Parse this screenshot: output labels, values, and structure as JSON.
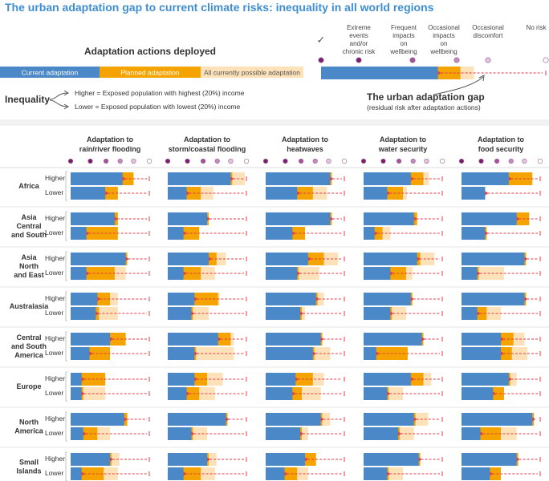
{
  "title": "The urban adaptation gap to current climate risks: inequality in all world regions",
  "legend": {
    "heading": "Adaptation actions deployed",
    "current": "Current adaptation",
    "planned": "Planned adaptation",
    "possible": "All currently possible adaptation",
    "inequality_label": "Inequality",
    "higher_desc": "Higher = Exposed population with highest (20%) income",
    "lower_desc": "Lower = Exposed population with lowest (20%) income",
    "check_mark": "✓",
    "risk_levels": [
      [
        "Extreme",
        "events",
        "and/or",
        "chronic risk"
      ],
      [
        "Frequent",
        "impacts",
        "on",
        "wellbeing"
      ],
      [
        "Occasional",
        "impacts",
        "on",
        "wellbeing"
      ],
      [
        "Occasional",
        "discomfort"
      ],
      [
        "No risk"
      ]
    ],
    "gap_title": "The urban adaptation gap",
    "gap_sub": "(residual risk after adaptation actions)",
    "example": {
      "current": 0.52,
      "planned": 0.62,
      "possible": 0.68
    }
  },
  "colors": {
    "current": "#4a88c7",
    "planned": "#f5a300",
    "possible": "#fde1b9",
    "gap": "#e63946",
    "title": "#3f8ed0",
    "risk_dots": [
      "#7a1f6e",
      "#a05396",
      "#c38bbb",
      "#e2c4de",
      "#ffffff"
    ]
  },
  "chart_data": {
    "type": "bar",
    "scale_note": "values are fraction of risk reduced (0 = extreme risk, 1 = no risk)",
    "hazards": [
      "Adaptation to rain/river flooding",
      "Adaptation to storm/coastal flooding",
      "Adaptation to heatwaves",
      "Adaptation to water security",
      "Adaptation to food security"
    ],
    "row_labels": [
      "Higher",
      "Lower"
    ],
    "regions": [
      {
        "name": "Africa",
        "values": [
          [
            [
              0.66,
              0.8,
              0.8
            ],
            [
              0.44,
              0.6,
              0.6
            ]
          ],
          [
            [
              0.8,
              0.82,
              0.98
            ],
            [
              0.24,
              0.42,
              0.58
            ]
          ],
          [
            [
              0.82,
              0.84,
              0.84
            ],
            [
              0.4,
              0.6,
              0.78
            ]
          ],
          [
            [
              0.6,
              0.76,
              0.83
            ],
            [
              0.3,
              0.5,
              0.55
            ]
          ],
          [
            [
              0.6,
              0.9,
              0.9
            ],
            [
              0.3,
              0.3,
              0.3
            ]
          ]
        ]
      },
      {
        "name": "Asia Central and South",
        "values": [
          [
            [
              0.56,
              0.6,
              0.6
            ],
            [
              0.2,
              0.6,
              0.6
            ]
          ],
          [
            [
              0.5,
              0.52,
              0.52
            ],
            [
              0.2,
              0.4,
              0.4
            ]
          ],
          [
            [
              0.82,
              0.84,
              0.84
            ],
            [
              0.34,
              0.5,
              0.5
            ]
          ],
          [
            [
              0.64,
              0.68,
              0.68
            ],
            [
              0.14,
              0.24,
              0.34
            ]
          ],
          [
            [
              0.7,
              0.86,
              0.86
            ],
            [
              0.3,
              0.32,
              0.32
            ]
          ]
        ]
      },
      {
        "name": "Asia North and East",
        "values": [
          [
            [
              0.7,
              0.72,
              0.72
            ],
            [
              0.2,
              0.56,
              0.7
            ]
          ],
          [
            [
              0.52,
              0.62,
              0.74
            ],
            [
              0.2,
              0.42,
              0.6
            ]
          ],
          [
            [
              0.54,
              0.74,
              0.92
            ],
            [
              0.4,
              0.42,
              0.68
            ]
          ],
          [
            [
              0.68,
              0.72,
              0.9
            ],
            [
              0.34,
              0.54,
              0.62
            ]
          ],
          [
            [
              0.8,
              0.82,
              0.82
            ],
            [
              0.2,
              0.22,
              0.54
            ]
          ]
        ]
      },
      {
        "name": "Australasia",
        "values": [
          [
            [
              0.34,
              0.5,
              0.6
            ],
            [
              0.32,
              0.36,
              0.6
            ]
          ],
          [
            [
              0.34,
              0.64,
              0.66
            ],
            [
              0.3,
              0.32,
              0.52
            ]
          ],
          [
            [
              0.64,
              0.66,
              0.74
            ],
            [
              0.44,
              0.46,
              0.5
            ]
          ],
          [
            [
              0.6,
              0.62,
              0.62
            ],
            [
              0.34,
              0.36,
              0.54
            ]
          ],
          [
            [
              0.8,
              0.82,
              0.82
            ],
            [
              0.2,
              0.32,
              0.5
            ]
          ]
        ]
      },
      {
        "name": "Central and South America",
        "values": [
          [
            [
              0.5,
              0.7,
              0.7
            ],
            [
              0.24,
              0.5,
              0.5
            ]
          ],
          [
            [
              0.64,
              0.8,
              0.84
            ],
            [
              0.34,
              0.36,
              0.84
            ]
          ],
          [
            [
              0.7,
              0.72,
              0.72
            ],
            [
              0.6,
              0.62,
              0.82
            ]
          ],
          [
            [
              0.74,
              0.76,
              0.76
            ],
            [
              0.16,
              0.56,
              0.56
            ]
          ],
          [
            [
              0.5,
              0.66,
              0.8
            ],
            [
              0.5,
              0.64,
              0.84
            ]
          ]
        ]
      },
      {
        "name": "Europe",
        "values": [
          [
            [
              0.14,
              0.44,
              0.44
            ],
            [
              0.14,
              0.16,
              0.44
            ]
          ],
          [
            [
              0.34,
              0.5,
              0.7
            ],
            [
              0.24,
              0.4,
              0.6
            ]
          ],
          [
            [
              0.38,
              0.6,
              0.74
            ],
            [
              0.34,
              0.46,
              0.7
            ]
          ],
          [
            [
              0.6,
              0.76,
              0.86
            ],
            [
              0.3,
              0.32,
              0.5
            ]
          ],
          [
            [
              0.6,
              0.62,
              0.7
            ],
            [
              0.4,
              0.54,
              0.54
            ]
          ]
        ]
      },
      {
        "name": "North America",
        "values": [
          [
            [
              0.68,
              0.72,
              0.72
            ],
            [
              0.16,
              0.34,
              0.5
            ]
          ],
          [
            [
              0.74,
              0.76,
              0.76
            ],
            [
              0.3,
              0.32,
              0.5
            ]
          ],
          [
            [
              0.7,
              0.72,
              0.82
            ],
            [
              0.44,
              0.46,
              0.54
            ]
          ],
          [
            [
              0.64,
              0.66,
              0.82
            ],
            [
              0.44,
              0.46,
              0.64
            ]
          ],
          [
            [
              0.9,
              0.92,
              0.92
            ],
            [
              0.24,
              0.5,
              0.7
            ]
          ]
        ]
      },
      {
        "name": "Small Islands",
        "values": [
          [
            [
              0.5,
              0.52,
              0.62
            ],
            [
              0.14,
              0.42,
              0.6
            ]
          ],
          [
            [
              0.5,
              0.52,
              0.62
            ],
            [
              0.2,
              0.42,
              0.6
            ]
          ],
          [
            [
              0.5,
              0.64,
              0.64
            ],
            [
              0.24,
              0.4,
              0.54
            ]
          ],
          [
            [
              0.7,
              0.72,
              0.72
            ],
            [
              0.3,
              0.32,
              0.5
            ]
          ],
          [
            [
              0.7,
              0.72,
              0.72
            ],
            [
              0.36,
              0.5,
              0.5
            ]
          ]
        ]
      }
    ]
  }
}
